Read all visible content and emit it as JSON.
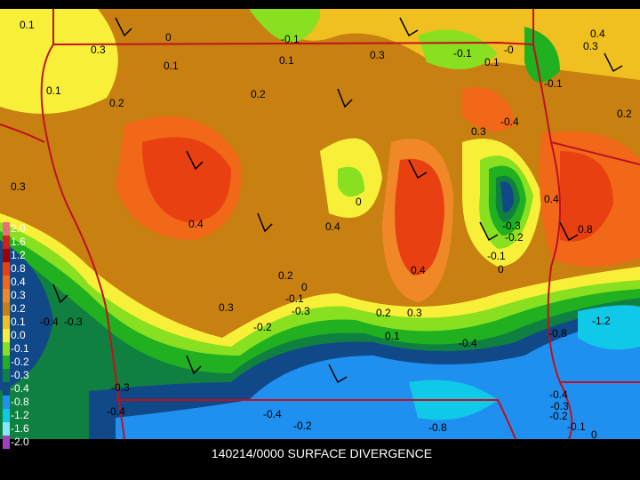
{
  "caption": "140214/0000 SURFACE DIVERGENCE",
  "legend": [
    {
      "label": "2.0",
      "color": "#e8707a"
    },
    {
      "label": "1.6",
      "color": "#d42020"
    },
    {
      "label": "1.2",
      "color": "#a00000"
    },
    {
      "label": "0.8",
      "color": "#e84010"
    },
    {
      "label": "0.4",
      "color": "#f06818"
    },
    {
      "label": "0.3",
      "color": "#f08828"
    },
    {
      "label": "0.2",
      "color": "#c88010"
    },
    {
      "label": "0.1",
      "color": "#f0c020"
    },
    {
      "label": "0.0",
      "color": "#f8f038"
    },
    {
      "label": "-0.1",
      "color": "#88e020"
    },
    {
      "label": "-0.2",
      "color": "#20b020"
    },
    {
      "label": "-0.3",
      "color": "#108040"
    },
    {
      "label": "-0.4",
      "color": "#104888"
    },
    {
      "label": "-0.8",
      "color": "#2090f0"
    },
    {
      "label": "-1.2",
      "color": "#10c8e8"
    },
    {
      "label": "-1.6",
      "color": "#88e8f8"
    },
    {
      "label": "-2.0",
      "color": "#a040c0"
    }
  ],
  "contour_labels": [
    "0.1",
    "0.3",
    "0.1",
    "0.2",
    "0.1",
    "0.1",
    "0",
    "-0.1",
    "0.3",
    "-0.1",
    "0.1",
    "-0",
    "0.4",
    "0.3",
    "-0.1",
    "0.2",
    "0.2",
    "0.3",
    "-0.4",
    "0.3",
    "0",
    "-0.3",
    "-0.2",
    "0.4",
    "0.4",
    "-0.1",
    "0.4",
    "0",
    "0.4",
    "0.8",
    "0.2",
    "0",
    "0.3",
    "-0.1",
    "-0.3",
    "0.2",
    "0.3",
    "-0.2",
    "0.1",
    "-0.4",
    "-0.8",
    "-1.2",
    "-0.4",
    "-0.3",
    "-0.3",
    "-0.4",
    "-0.4",
    "-0.2",
    "-0.8",
    "-0.4",
    "-0.3",
    "-0.2",
    "-0.1",
    "0"
  ]
}
